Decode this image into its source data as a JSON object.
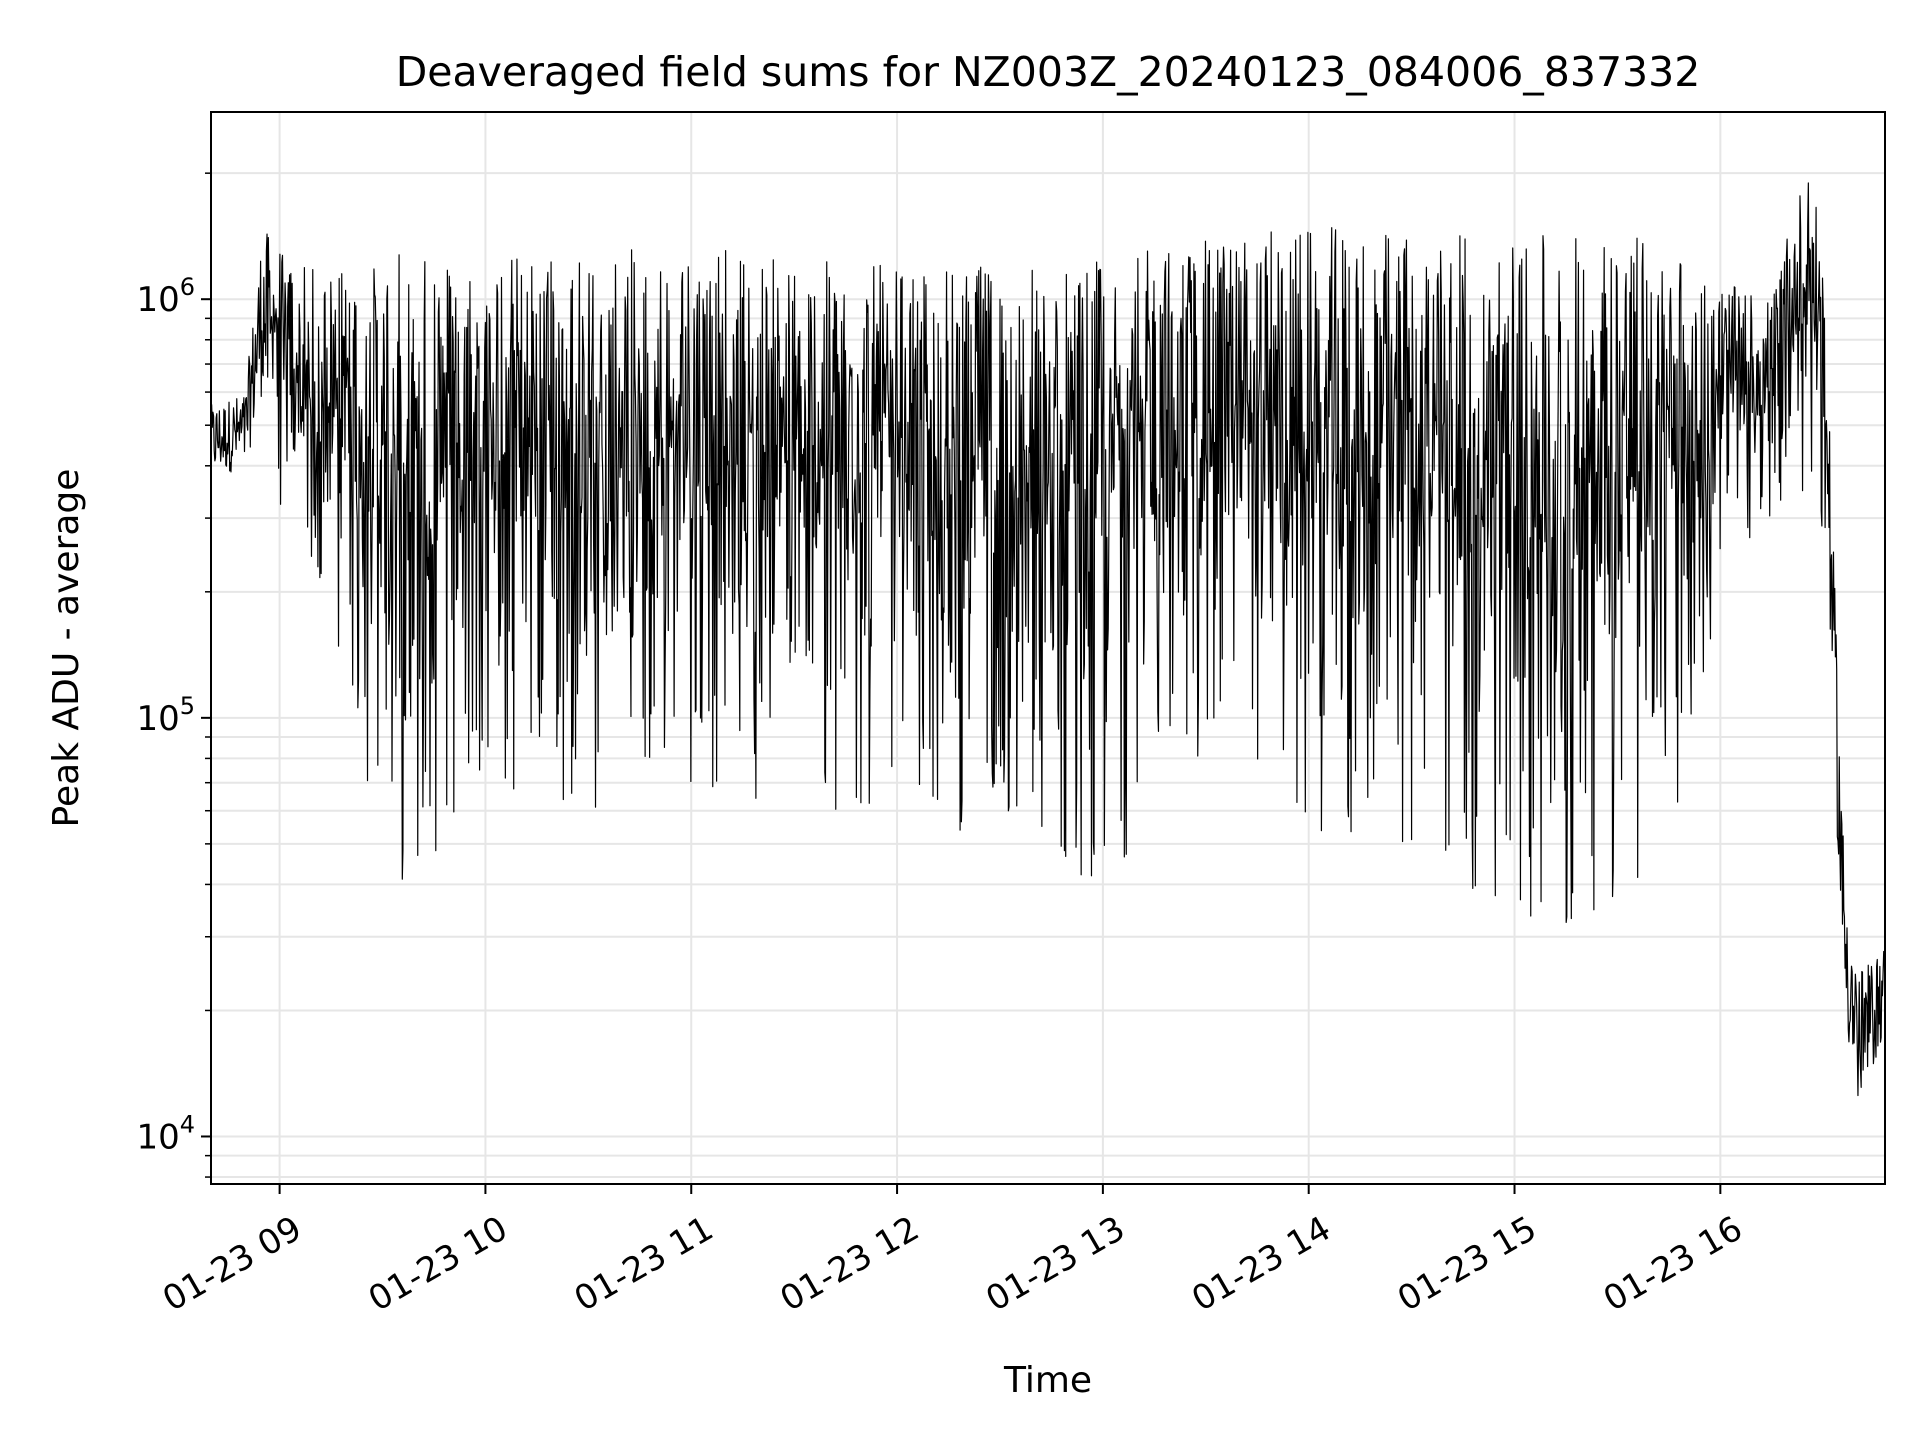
{
  "chart_data": {
    "type": "line",
    "title": "Deaveraged field sums for NZ003Z_20240123_084006_837332",
    "xlabel": "Time",
    "ylabel": "Peak ADU - average",
    "x_axis_type": "time",
    "xlim": [
      "2024-01-23T08:40",
      "2024-01-23T16:48"
    ],
    "x_ticks": [
      {
        "time": "2024-01-23T09:00",
        "label": "01-23 09"
      },
      {
        "time": "2024-01-23T10:00",
        "label": "01-23 10"
      },
      {
        "time": "2024-01-23T11:00",
        "label": "01-23 11"
      },
      {
        "time": "2024-01-23T12:00",
        "label": "01-23 12"
      },
      {
        "time": "2024-01-23T13:00",
        "label": "01-23 13"
      },
      {
        "time": "2024-01-23T14:00",
        "label": "01-23 14"
      },
      {
        "time": "2024-01-23T15:00",
        "label": "01-23 15"
      },
      {
        "time": "2024-01-23T16:00",
        "label": "01-23 16"
      }
    ],
    "y_scale": "log",
    "ylim": [
      7700,
      2800000
    ],
    "y_major_ticks": [
      {
        "value": 10000,
        "base": "10",
        "exp": "4"
      },
      {
        "value": 100000,
        "base": "10",
        "exp": "5"
      },
      {
        "value": 1000000,
        "base": "10",
        "exp": "6"
      }
    ],
    "y_minor_ticks": [
      8000,
      9000,
      20000,
      30000,
      40000,
      50000,
      60000,
      70000,
      80000,
      90000,
      200000,
      300000,
      400000,
      500000,
      600000,
      700000,
      800000,
      900000,
      2000000
    ],
    "grid": true,
    "line_color": "#000000",
    "grid_color": "#e6e6e6",
    "envelope": [
      {
        "t": "08:40",
        "high": 560000,
        "low": 380000
      },
      {
        "t": "08:50",
        "high": 600000,
        "low": 390000
      },
      {
        "t": "08:55",
        "high": 1500000,
        "low": 600000
      },
      {
        "t": "09:05",
        "high": 1200000,
        "low": 180000
      },
      {
        "t": "09:20",
        "high": 1200000,
        "low": 130000
      },
      {
        "t": "09:25",
        "high": 1200000,
        "low": 60000
      },
      {
        "t": "09:35",
        "high": 1300000,
        "low": 40000
      },
      {
        "t": "10:00",
        "high": 1300000,
        "low": 60000
      },
      {
        "t": "10:30",
        "high": 1300000,
        "low": 60000
      },
      {
        "t": "11:00",
        "high": 1350000,
        "low": 70000
      },
      {
        "t": "11:30",
        "high": 1250000,
        "low": 50000
      },
      {
        "t": "12:00",
        "high": 1200000,
        "low": 60000
      },
      {
        "t": "12:30",
        "high": 1200000,
        "low": 50000
      },
      {
        "t": "13:00",
        "high": 1250000,
        "low": 40000
      },
      {
        "t": "13:30",
        "high": 1400000,
        "low": 80000
      },
      {
        "t": "14:00",
        "high": 1500000,
        "low": 50000
      },
      {
        "t": "14:30",
        "high": 1450000,
        "low": 48000
      },
      {
        "t": "15:00",
        "high": 1400000,
        "low": 32000
      },
      {
        "t": "15:30",
        "high": 1500000,
        "low": 28000
      },
      {
        "t": "15:50",
        "high": 1300000,
        "low": 70000
      },
      {
        "t": "16:00",
        "high": 1100000,
        "low": 200000
      },
      {
        "t": "16:15",
        "high": 1000000,
        "low": 280000
      },
      {
        "t": "16:25",
        "high": 2100000,
        "low": 350000
      },
      {
        "t": "16:30",
        "high": 1400000,
        "low": 260000
      },
      {
        "t": "16:33",
        "high": 250000,
        "low": 90000
      },
      {
        "t": "16:36",
        "high": 50000,
        "low": 20000
      },
      {
        "t": "16:40",
        "high": 25000,
        "low": 11000
      },
      {
        "t": "16:44",
        "high": 26000,
        "low": 14000
      },
      {
        "t": "16:48",
        "high": 29000,
        "low": 18000
      }
    ]
  }
}
